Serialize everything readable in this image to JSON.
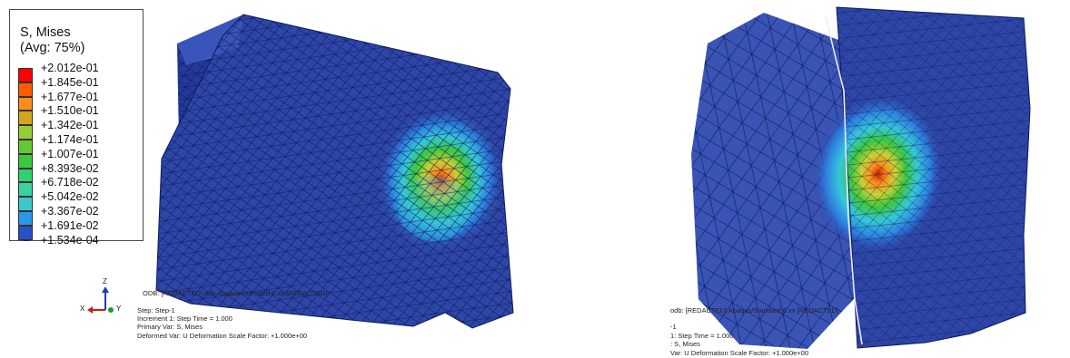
{
  "legend": {
    "title_line1": "S, Mises",
    "title_line2": "(Avg: 75%)",
    "levels": [
      {
        "label": "+2.012e-01",
        "color": "#ff0000"
      },
      {
        "label": "+1.845e-01",
        "color": "#ff5a00"
      },
      {
        "label": "+1.677e-01",
        "color": "#ff8c1a"
      },
      {
        "label": "+1.510e-01",
        "color": "#d2a61c"
      },
      {
        "label": "+1.342e-01",
        "color": "#9acd32"
      },
      {
        "label": "+1.174e-01",
        "color": "#64c832"
      },
      {
        "label": "+1.007e-01",
        "color": "#3cc83c"
      },
      {
        "label": "+8.393e-02",
        "color": "#2ed26e"
      },
      {
        "label": "+6.718e-02",
        "color": "#3cd2a0"
      },
      {
        "label": "+5.042e-02",
        "color": "#3cc8c8"
      },
      {
        "label": "+3.367e-02",
        "color": "#2d96e6"
      },
      {
        "label": "+1.691e-02",
        "color": "#2851c8"
      },
      {
        "label": "+1.534e-04",
        "color": "#1e3c9b"
      }
    ]
  },
  "triad": {
    "z": "Z",
    "x": "X",
    "y": "Y"
  },
  "left_info": {
    "line1": "ODB: [REDACTED].odb     Abaqus/Standard 6.xx     [REDACTED]",
    "line2": "Step: Step-1",
    "line3": "Increment    1: Step Time =    1.000",
    "line4": "Primary Var: S, Mises",
    "line5": "Deformed Var: U   Deformation Scale Factor: +1.000e+00"
  },
  "right_info": {
    "line1": "odb: [REDACTED]     Abaqus/Standard 6.xx     [REDACTED]",
    "line2": "-1",
    "line3": "1: Step Time =    1.000",
    "line4": ": S, Mises",
    "line5": "Var: U   Deformation Scale Factor: +1.000e+00"
  },
  "colors": {
    "mesh_base": "#2e46a8",
    "mesh_dark": "#22348a",
    "mesh_light": "#4a62c4",
    "mesh_line": "#0d1a5a",
    "hot_red": "#cc2200",
    "hot_orange": "#ff8c1a",
    "hot_yellow": "#c8d232",
    "hot_green": "#3cc83c",
    "hot_cyan": "#35c7d9"
  }
}
